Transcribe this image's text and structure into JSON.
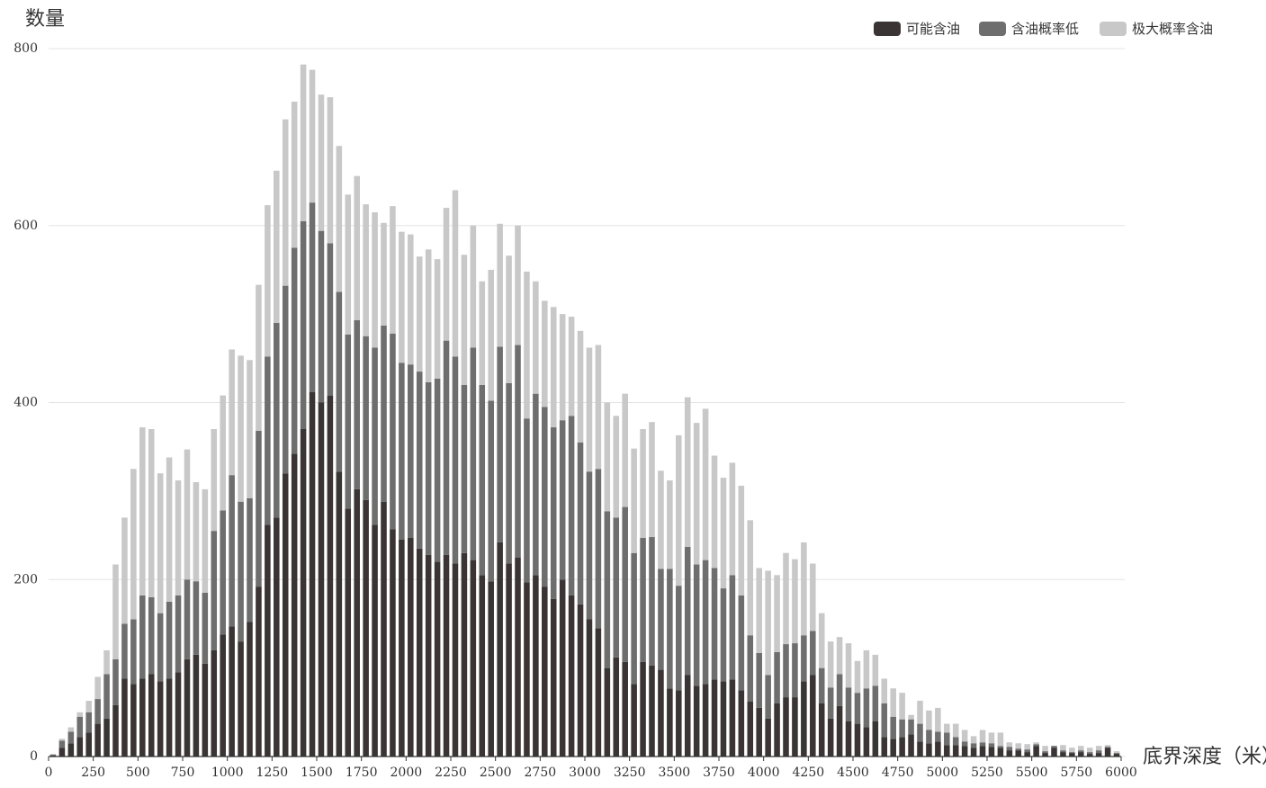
{
  "chart_data": {
    "type": "stacked-histogram",
    "y_label": "数量",
    "x_label": "底界深度（米）",
    "bins": [
      0,
      50,
      100,
      150,
      200,
      250,
      300,
      350,
      400,
      450,
      500,
      550,
      600,
      650,
      700,
      750,
      800,
      850,
      900,
      950,
      1000,
      1050,
      1100,
      1150,
      1200,
      1250,
      1300,
      1350,
      1400,
      1450,
      1500,
      1550,
      1600,
      1650,
      1700,
      1750,
      1800,
      1850,
      1900,
      1950,
      2000,
      2050,
      2100,
      2150,
      2200,
      2250,
      2300,
      2350,
      2400,
      2450,
      2500,
      2550,
      2600,
      2650,
      2700,
      2750,
      2800,
      2850,
      2900,
      2950,
      3000,
      3050,
      3100,
      3150,
      3200,
      3250,
      3300,
      3350,
      3400,
      3450,
      3500,
      3550,
      3600,
      3650,
      3700,
      3750,
      3800,
      3850,
      3900,
      3950,
      4000,
      4050,
      4100,
      4150,
      4200,
      4250,
      4300,
      4350,
      4400,
      4450,
      4500,
      4550,
      4600,
      4650,
      4700,
      4750,
      4800,
      4850,
      4900,
      4950,
      5000,
      5050,
      5100,
      5150,
      5200,
      5250,
      5300,
      5350,
      5400,
      5450,
      5500,
      5550,
      5600,
      5650,
      5700,
      5750,
      5800,
      5850,
      5900,
      5950,
      6000
    ],
    "series": [
      {
        "name": "可能含油",
        "color": "#3a3534",
        "values": [
          1,
          10,
          15,
          22,
          27,
          37,
          43,
          58,
          88,
          82,
          88,
          93,
          85,
          88,
          95,
          110,
          115,
          105,
          120,
          138,
          147,
          130,
          152,
          192,
          262,
          270,
          320,
          342,
          370,
          412,
          400,
          408,
          322,
          280,
          302,
          290,
          262,
          288,
          257,
          245,
          247,
          235,
          228,
          220,
          228,
          218,
          230,
          222,
          205,
          198,
          242,
          218,
          225,
          197,
          205,
          192,
          178,
          200,
          182,
          172,
          155,
          145,
          100,
          112,
          107,
          82,
          107,
          103,
          98,
          77,
          75,
          92,
          80,
          82,
          87,
          85,
          87,
          75,
          62,
          55,
          43,
          60,
          67,
          67,
          85,
          92,
          60,
          43,
          57,
          40,
          37,
          33,
          40,
          22,
          20,
          22,
          25,
          17,
          15,
          17,
          13,
          13,
          12,
          10,
          12,
          11,
          10,
          7,
          7,
          5,
          12,
          4,
          10,
          5,
          4,
          5,
          3,
          4,
          10,
          3
        ]
      },
      {
        "name": "含油概率低",
        "color": "#6e6e6e",
        "values": [
          1,
          8,
          13,
          23,
          23,
          28,
          50,
          52,
          62,
          73,
          94,
          87,
          77,
          87,
          87,
          90,
          83,
          80,
          135,
          140,
          171,
          158,
          140,
          176,
          190,
          220,
          212,
          233,
          235,
          214,
          194,
          172,
          203,
          197,
          191,
          185,
          200,
          199,
          221,
          200,
          196,
          200,
          195,
          207,
          242,
          234,
          190,
          240,
          215,
          204,
          221,
          204,
          240,
          185,
          205,
          203,
          194,
          180,
          203,
          183,
          167,
          180,
          177,
          158,
          175,
          148,
          140,
          145,
          114,
          135,
          118,
          145,
          137,
          140,
          126,
          105,
          118,
          107,
          75,
          62,
          49,
          58,
          60,
          61,
          52,
          50,
          40,
          35,
          36,
          38,
          35,
          44,
          40,
          38,
          25,
          20,
          17,
          20,
          15,
          11,
          14,
          9,
          5,
          5,
          4,
          4,
          2,
          4,
          2,
          3,
          2,
          2,
          2,
          2,
          1,
          2,
          2,
          3,
          1,
          1
        ]
      },
      {
        "name": "极大概率含油",
        "color": "#c8c8c8",
        "values": [
          1,
          2,
          5,
          5,
          13,
          25,
          27,
          107,
          120,
          170,
          190,
          190,
          158,
          163,
          130,
          147,
          112,
          117,
          115,
          130,
          142,
          165,
          156,
          165,
          171,
          172,
          188,
          165,
          177,
          150,
          154,
          165,
          165,
          158,
          163,
          149,
          153,
          116,
          144,
          148,
          147,
          130,
          150,
          135,
          150,
          188,
          147,
          138,
          117,
          148,
          139,
          144,
          135,
          166,
          127,
          120,
          136,
          120,
          112,
          126,
          140,
          140,
          123,
          115,
          128,
          118,
          123,
          130,
          111,
          100,
          170,
          169,
          160,
          171,
          127,
          125,
          127,
          124,
          130,
          96,
          118,
          87,
          103,
          95,
          105,
          76,
          62,
          52,
          42,
          50,
          36,
          43,
          35,
          28,
          32,
          30,
          5,
          26,
          22,
          27,
          10,
          15,
          13,
          8,
          14,
          12,
          15,
          5,
          6,
          6,
          2,
          6,
          0,
          6,
          5,
          5,
          5,
          5,
          2,
          2
        ]
      }
    ],
    "xlim": [
      0,
      6000
    ],
    "xticks": [
      0,
      250,
      500,
      750,
      1000,
      1250,
      1500,
      1750,
      2000,
      2250,
      2500,
      2750,
      3000,
      3250,
      3500,
      3750,
      4000,
      4250,
      4500,
      4750,
      5000,
      5250,
      5500,
      5750,
      6000
    ],
    "ylim": [
      0,
      800
    ],
    "yticks": [
      0,
      200,
      400,
      600,
      800
    ],
    "grid": true,
    "legend_position": "top-right"
  }
}
